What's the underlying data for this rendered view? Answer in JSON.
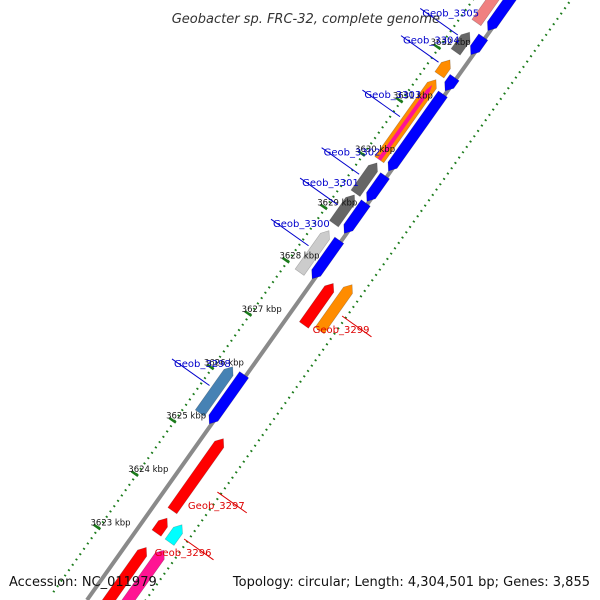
{
  "title": "Geobacter sp. FRC-32, complete genome",
  "footer": {
    "accession": "Accession: NC_011979",
    "summary": "Topology: circular; Length: 4,304,501 bp; Genes: 3,855"
  },
  "colors": {
    "forward_label": "#dd0000",
    "reverse_label": "#0000cc",
    "backbone": "#8a8a8a",
    "ticks": "#1a7a1a"
  },
  "kbp_ticks": [
    {
      "kb": 3623,
      "label": "3623 kbp"
    },
    {
      "kb": 3624,
      "label": "3624 kbp"
    },
    {
      "kb": 3625,
      "label": "3625 kbp"
    },
    {
      "kb": 3626,
      "label": "3626 kbp"
    },
    {
      "kb": 3627,
      "label": "3627 kbp"
    },
    {
      "kb": 3628,
      "label": "3628 kbp"
    },
    {
      "kb": 3629,
      "label": "3629 kbp"
    },
    {
      "kb": 3630,
      "label": "3630 kbp"
    },
    {
      "kb": 3631,
      "label": "3631 kbp"
    },
    {
      "kb": 3632,
      "label": "3632 kbp"
    },
    {
      "kb": 3633,
      "label": "3633 kbp"
    }
  ],
  "features": [
    {
      "color": "#ff1493",
      "track": 4,
      "start": 3622.14,
      "end": 3623.3,
      "dir": 1
    },
    {
      "color": "#ff0000",
      "track": 3,
      "start": 3622.12,
      "end": 3623.18,
      "dir": 1
    },
    {
      "color": "#00ffff",
      "track": 4,
      "start": 3623.45,
      "end": 3623.78,
      "dir": 1
    },
    {
      "color": "#ff0000",
      "track": 3,
      "start": 3623.45,
      "end": 3623.73,
      "dir": 1
    },
    {
      "color": "#ff0000",
      "track": 3,
      "start": 3623.87,
      "end": 3625.22,
      "dir": 1
    },
    {
      "color": "#ff8c00",
      "track": 4,
      "start": 3627.42,
      "end": 3628.28,
      "dir": 1
    },
    {
      "color": "#ff0000",
      "track": 3,
      "start": 3627.35,
      "end": 3628.13,
      "dir": 1
    },
    {
      "color": "#0000ff",
      "track": 2,
      "start": 3625.28,
      "end": 3626.2,
      "dir": -1
    },
    {
      "color": "#4682b4",
      "track": 1,
      "start": 3625.33,
      "end": 3626.2,
      "dir": 1
    },
    {
      "color": "#0000ff",
      "track": 2,
      "start": 3628.0,
      "end": 3628.72,
      "dir": -1
    },
    {
      "color": "#cccccc",
      "track": 1,
      "start": 3627.97,
      "end": 3628.75,
      "dir": 1
    },
    {
      "color": "#0000ff",
      "track": 2,
      "start": 3628.85,
      "end": 3629.42,
      "dir": -1
    },
    {
      "color": "#666666",
      "track": 1,
      "start": 3628.88,
      "end": 3629.42,
      "dir": 1
    },
    {
      "color": "#0000ff",
      "track": 2,
      "start": 3629.45,
      "end": 3629.93,
      "dir": -1
    },
    {
      "color": "#666666",
      "track": 1,
      "start": 3629.45,
      "end": 3630.02,
      "dir": 1
    },
    {
      "color": "#0000ff",
      "track": 2,
      "start": 3630.02,
      "end": 3631.46,
      "dir": -1
    },
    {
      "color": "#ff8c00",
      "track": 1,
      "start": 3630.08,
      "end": 3631.58,
      "dir": 1
    },
    {
      "color": "#ff1493",
      "track": 1,
      "start": 3630.08,
      "end": 3631.48,
      "dir": 1,
      "thin": true
    },
    {
      "color": "#ff8c00",
      "track": 1,
      "start": 3631.67,
      "end": 3631.95,
      "dir": 1
    },
    {
      "color": "#0000ff",
      "track": 2,
      "start": 3631.52,
      "end": 3631.77,
      "dir": -1
    },
    {
      "color": "#666666",
      "track": 1,
      "start": 3632.1,
      "end": 3632.47,
      "dir": 1
    },
    {
      "color": "#0000ff",
      "track": 2,
      "start": 3632.2,
      "end": 3632.53,
      "dir": -1
    },
    {
      "color": "#0000ff",
      "track": 2,
      "start": 3632.65,
      "end": 3633.55,
      "dir": -1
    },
    {
      "color": "#f08080",
      "track": 1,
      "start": 3632.65,
      "end": 3633.75,
      "dir": 1
    },
    {
      "color": "#0000ff",
      "track": 2,
      "start": 3633.6,
      "end": 3634.0,
      "dir": -1
    },
    {
      "color": "#0000ff",
      "track": 2,
      "start": 3634.05,
      "end": 3634.3,
      "dir": -1
    }
  ],
  "gene_labels": [
    {
      "text": "Geob_3296",
      "side": "left",
      "kb": 3623.62
    },
    {
      "text": "Geob_3297",
      "side": "left",
      "kb": 3624.5
    },
    {
      "text": "Geob_3299",
      "side": "left",
      "kb": 3627.8
    },
    {
      "text": "Geob_3298",
      "side": "right",
      "kb": 3625.76
    },
    {
      "text": "Geob_3300",
      "side": "right",
      "kb": 3628.38
    },
    {
      "text": "Geob_3301",
      "side": "right",
      "kb": 3629.15
    },
    {
      "text": "Geob_3302",
      "side": "right",
      "kb": 3629.72
    },
    {
      "text": "Geob_3303",
      "side": "right",
      "kb": 3630.8
    },
    {
      "text": "Geob_3304",
      "side": "right",
      "kb": 3631.82
    },
    {
      "text": "Geob_3305",
      "side": "right",
      "kb": 3632.33
    }
  ]
}
